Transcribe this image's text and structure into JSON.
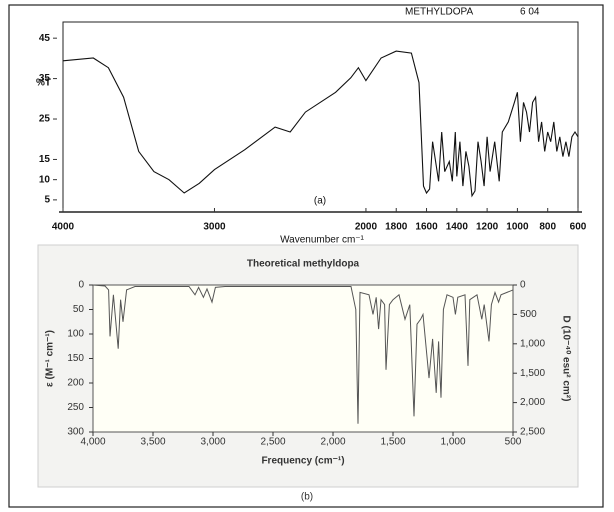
{
  "chart_data": [
    {
      "type": "line",
      "annotations": [
        "METHYLDOPA",
        "6  04"
      ],
      "y_label": "%T",
      "x_label": "Wavenumber   cm⁻¹",
      "caption": "(a)",
      "color": "#111111",
      "xlim": [
        4000,
        600
      ],
      "xticks": [
        4000,
        3000,
        2000,
        1800,
        1600,
        1400,
        1200,
        1000,
        800,
        600
      ],
      "ylim": [
        2,
        49
      ],
      "yticks": [
        45,
        35,
        25,
        15,
        10,
        5
      ],
      "x": [
        4000,
        3800,
        3700,
        3600,
        3500,
        3400,
        3300,
        3200,
        3100,
        3000,
        2800,
        2600,
        2500,
        2400,
        2200,
        2100,
        2050,
        2000,
        1900,
        1800,
        1700,
        1650,
        1620,
        1600,
        1580,
        1560,
        1520,
        1500,
        1480,
        1450,
        1430,
        1410,
        1400,
        1380,
        1360,
        1340,
        1320,
        1300,
        1280,
        1260,
        1240,
        1220,
        1200,
        1180,
        1150,
        1120,
        1100,
        1060,
        1020,
        1000,
        980,
        960,
        940,
        920,
        900,
        880,
        860,
        840,
        820,
        800,
        780,
        760,
        740,
        720,
        700,
        680,
        660,
        640,
        620,
        600
      ],
      "values": [
        39.4,
        40.1,
        37.7,
        30.4,
        17,
        12,
        10,
        6.7,
        9.1,
        12.5,
        17.4,
        23,
        21.8,
        26.7,
        31.6,
        35.2,
        37.7,
        34.5,
        40.1,
        41.8,
        41.3,
        34,
        8.4,
        6.7,
        7.7,
        19.4,
        9.6,
        21.8,
        12,
        14.5,
        9.6,
        21.8,
        10.8,
        19.4,
        8.4,
        17,
        13.3,
        6,
        7.2,
        19.4,
        14.5,
        8.4,
        20.6,
        12,
        19.4,
        9.6,
        21.8,
        24.3,
        29.1,
        31.6,
        19.4,
        29.1,
        26.7,
        21.8,
        29.1,
        30.4,
        19.4,
        24.3,
        17,
        21.8,
        19.4,
        24.3,
        17,
        20.6,
        15.7,
        19.4,
        15.7,
        20.6,
        21.8,
        20.6
      ]
    },
    {
      "type": "line",
      "title": "Theoretical methyldopa",
      "x_label": "Frequency (cm⁻¹)",
      "y_label": "ε (M⁻¹ cm⁻¹)",
      "y2_label": "D (10⁻⁴⁰ esu² cm²)",
      "caption": "(b)",
      "color": "#555555",
      "y_inverted": true,
      "xlim": [
        4000,
        500
      ],
      "xticks": [
        {
          "value": 4000,
          "label": "4,000"
        },
        {
          "value": 3500,
          "label": "3,500"
        },
        {
          "value": 3000,
          "label": "3,000"
        },
        {
          "value": 2500,
          "label": "2,500"
        },
        {
          "value": 2000,
          "label": "2,000"
        },
        {
          "value": 1500,
          "label": "1,500"
        },
        {
          "value": 1000,
          "label": "1,000"
        },
        500
      ],
      "ylim": [
        0,
        300
      ],
      "yticks": [
        0,
        50,
        100,
        150,
        200,
        250,
        300
      ],
      "y2lim": [
        0,
        2500
      ],
      "y2ticks": [
        0,
        500,
        {
          "value": 1000,
          "label": "1,000"
        },
        {
          "value": 1500,
          "label": "1,500"
        },
        {
          "value": 2000,
          "label": "2,000"
        },
        {
          "value": 2500,
          "label": "2,500"
        }
      ],
      "x": [
        4000,
        3900,
        3870,
        3858,
        3830,
        3790,
        3770,
        3750,
        3720,
        3650,
        3200,
        3150,
        3120,
        3080,
        3050,
        3008,
        2980,
        2900,
        1850,
        1810,
        1792,
        1775,
        1700,
        1667,
        1640,
        1620,
        1600,
        1570,
        1558,
        1530,
        1500,
        1450,
        1400,
        1360,
        1325,
        1300,
        1270,
        1250,
        1200,
        1170,
        1140,
        1120,
        1100,
        1080,
        1050,
        1000,
        980,
        960,
        900,
        875,
        860,
        800,
        760,
        740,
        700,
        680,
        650,
        620,
        600,
        550,
        500
      ],
      "values": [
        0,
        2,
        10,
        105,
        20,
        130,
        30,
        75,
        10,
        3,
        3,
        20,
        5,
        25,
        8,
        35,
        5,
        3,
        3,
        50,
        283,
        15,
        20,
        60,
        25,
        90,
        30,
        40,
        173,
        40,
        30,
        20,
        70,
        40,
        268,
        80,
        70,
        60,
        190,
        110,
        220,
        115,
        230,
        50,
        20,
        25,
        60,
        25,
        20,
        165,
        30,
        20,
        70,
        40,
        115,
        40,
        15,
        35,
        20,
        15,
        10
      ]
    }
  ]
}
